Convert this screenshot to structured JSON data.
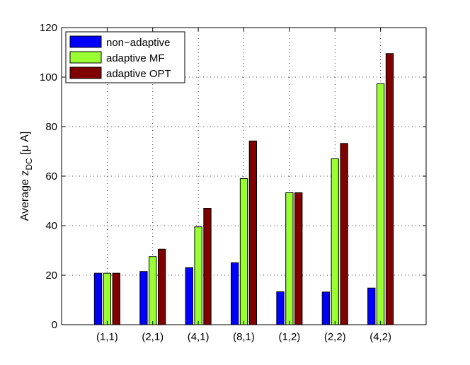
{
  "chart_data": {
    "type": "bar",
    "categories": [
      "(1,1)",
      "(2,1)",
      "(4,1)",
      "(8,1)",
      "(1,2)",
      "(2,2)",
      "(4,2)"
    ],
    "series": [
      {
        "name": "non−adaptive",
        "color": "#0000ff",
        "values": [
          20.8,
          21.5,
          23.0,
          25.0,
          13.3,
          13.2,
          14.8
        ]
      },
      {
        "name": "adaptive MF",
        "color": "#99ff33",
        "values": [
          20.8,
          27.5,
          39.5,
          59.0,
          53.3,
          67.0,
          97.3
        ]
      },
      {
        "name": "adaptive OPT",
        "color": "#800000",
        "values": [
          20.8,
          30.5,
          47.0,
          74.2,
          53.3,
          73.2,
          109.5
        ]
      }
    ],
    "ylabel": {
      "main": "Average z",
      "sub": "DC",
      "unit": " [μ A]"
    },
    "xlabel": "",
    "ylim": [
      0,
      120
    ],
    "yticks": [
      0,
      20,
      40,
      60,
      80,
      100,
      120
    ],
    "grid": true,
    "legend_position": "top-left"
  }
}
